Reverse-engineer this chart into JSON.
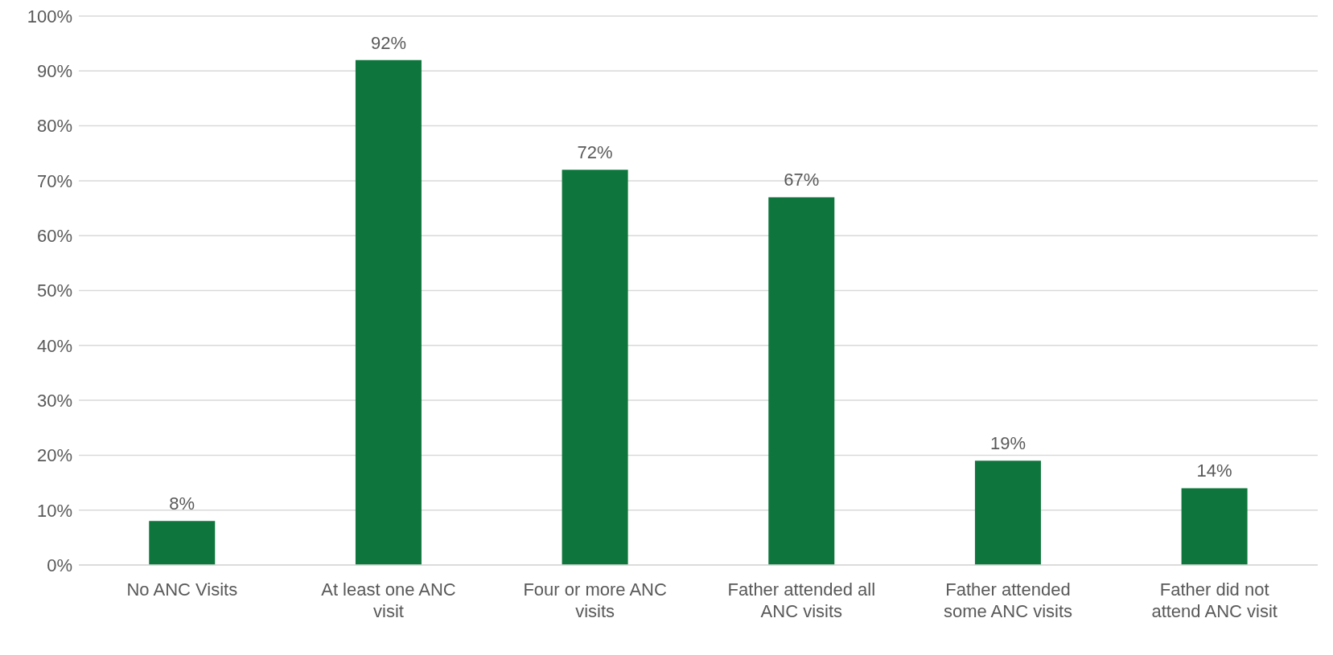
{
  "chart_data": {
    "type": "bar",
    "categories": [
      "No ANC Visits",
      "At least one ANC visit",
      "Four or more ANC visits",
      "Father attended all ANC visits",
      "Father attended some ANC visits",
      "Father did not attend ANC visit"
    ],
    "values": [
      8,
      92,
      72,
      67,
      19,
      14
    ],
    "value_labels": [
      "8%",
      "92%",
      "72%",
      "67%",
      "19%",
      "14%"
    ],
    "color": "#0e763c",
    "ylim": [
      0,
      100
    ],
    "yticks": [
      {
        "value": 0,
        "label": "0%"
      },
      {
        "value": 10,
        "label": "10%"
      },
      {
        "value": 20,
        "label": "20%"
      },
      {
        "value": 30,
        "label": "30%"
      },
      {
        "value": 40,
        "label": "40%"
      },
      {
        "value": 50,
        "label": "50%"
      },
      {
        "value": 60,
        "label": "60%"
      },
      {
        "value": 70,
        "label": "70%"
      },
      {
        "value": 80,
        "label": "80%"
      },
      {
        "value": 90,
        "label": "90%"
      },
      {
        "value": 100,
        "label": "100%"
      }
    ],
    "grid": "y"
  }
}
